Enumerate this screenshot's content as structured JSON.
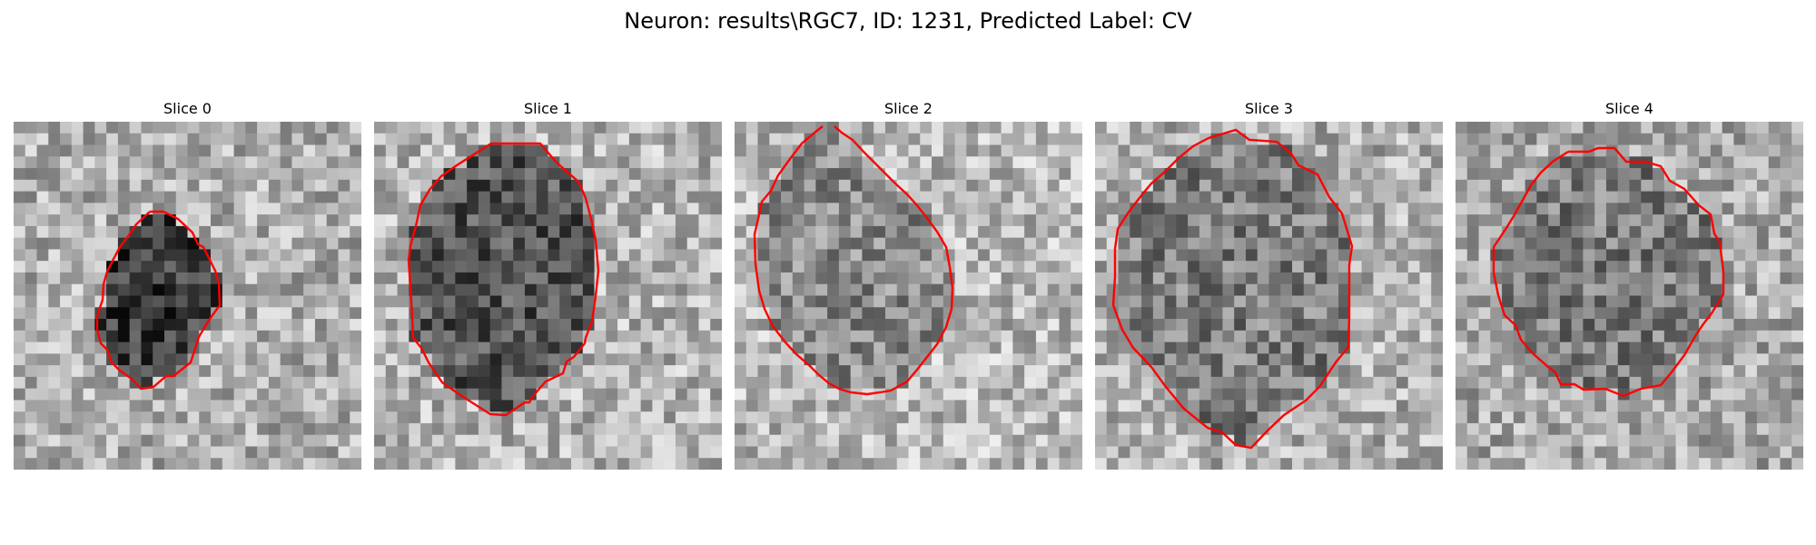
{
  "figure": {
    "title": "Neuron: results\\RGC7, ID: 1231, Predicted Label: CV"
  },
  "slices": [
    {
      "title": "Slice 0",
      "seed": 11,
      "contour_color": "#ff0000",
      "cell_color": "#3a3a3a",
      "background_color": "#aeaeae"
    },
    {
      "title": "Slice 1",
      "seed": 23,
      "contour_color": "#ff0000",
      "cell_color": "#555555",
      "background_color": "#b4b4b4"
    },
    {
      "title": "Slice 2",
      "seed": 37,
      "contour_color": "#ff0000",
      "cell_color": "#8a8a8a",
      "background_color": "#b8b8b8"
    },
    {
      "title": "Slice 3",
      "seed": 41,
      "contour_color": "#ff0000",
      "cell_color": "#7d7d7d",
      "background_color": "#b0b0b0"
    },
    {
      "title": "Slice 4",
      "seed": 53,
      "contour_color": "#ff0000",
      "cell_color": "#7c7c7c",
      "background_color": "#a9a9a9"
    }
  ],
  "colormap": "gray"
}
